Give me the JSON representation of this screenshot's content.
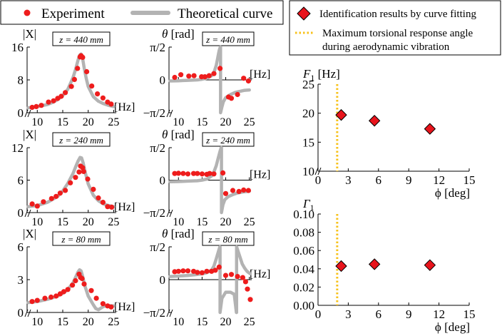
{
  "left_legend": {
    "experiment_label": "Experiment",
    "theory_label": "Theoretical curve"
  },
  "right_legend": {
    "identification_label": "Identification results by curve fitting",
    "max_angle_label_line1": "Maximum torsional response angle",
    "max_angle_label_line2": "during aerodynamic vibration"
  },
  "colors": {
    "experiment": "#ee1c1c",
    "theory": "#b3b3b3",
    "marker_fill": "#e8141c",
    "marker_stroke": "#000000",
    "max_angle_line": "#f7c21b"
  },
  "chart_data": [
    {
      "id": "amp-440",
      "type": "line+scatter",
      "ylabel": "|X|",
      "xlabel": "[Hz]",
      "annotation": "z = 440 mm",
      "xlim": [
        8,
        25.5
      ],
      "xticks": [
        10,
        15,
        20,
        25
      ],
      "ylim": [
        0,
        16
      ],
      "yticks": [
        {
          "v": 0,
          "label": "0"
        },
        {
          "v": 8,
          "label": "8"
        },
        {
          "v": 16,
          "label": "16"
        }
      ],
      "experiment": {
        "x": [
          9,
          9.8,
          10.8,
          12.2,
          13.2,
          14,
          14.7,
          15.5,
          16.7,
          17.3,
          17.9,
          18.4,
          18.6,
          18.9,
          19.7,
          20.7,
          21.8,
          22.9,
          23.8,
          24.5
        ],
        "y": [
          1.3,
          1.5,
          1.8,
          2.6,
          2.9,
          3.5,
          4,
          4.9,
          6.4,
          8.1,
          10.8,
          13.6,
          13.9,
          13.5,
          10,
          6.5,
          4.6,
          3.6,
          2.6,
          2.1
        ]
      },
      "theory": {
        "x": [
          8.2,
          10,
          12,
          13,
          14,
          15,
          16,
          17,
          17.5,
          18,
          18.3,
          18.6,
          18.9,
          19.2,
          19.6,
          20,
          21,
          22,
          23,
          24,
          25
        ],
        "y": [
          1.2,
          1.5,
          2,
          2.5,
          3.2,
          4.2,
          5.7,
          8.5,
          10.5,
          12.8,
          14,
          14.3,
          13.2,
          11,
          8.4,
          6.4,
          3.9,
          2.8,
          2.2,
          1.8,
          1.5
        ]
      }
    },
    {
      "id": "phase-440",
      "type": "line+scatter",
      "ylabel": "θ [rad]",
      "xlabel": "[Hz]",
      "annotation": "z = 440 mm",
      "xlim": [
        8,
        25.5
      ],
      "xticks": [
        10,
        15,
        20,
        25
      ],
      "ylim": [
        -1.5708,
        1.5708
      ],
      "yticks": [
        {
          "v": -1.5708,
          "label": "−π/2"
        },
        {
          "v": 0,
          "label": "0"
        },
        {
          "v": 1.5708,
          "label": "π/2"
        }
      ],
      "experiment": {
        "x": [
          9.2,
          10.5,
          12.2,
          13.3,
          14.9,
          15.6,
          16.5,
          17.5,
          18.8,
          20.6,
          21.2,
          22.5,
          23.8,
          24.8
        ],
        "y": [
          0.12,
          0.25,
          0.18,
          0.2,
          0.15,
          0.15,
          0.2,
          0.3,
          0.55,
          -0.82,
          -0.88,
          -0.7,
          0.08,
          -0.05
        ]
      },
      "theory": [
        {
          "x": [
            8.2,
            10,
            12,
            14,
            15,
            16,
            17,
            17.5,
            18,
            18.3,
            18.6,
            18.85
          ],
          "y": [
            -0.05,
            -0.04,
            -0.02,
            0,
            0.03,
            0.08,
            0.2,
            0.35,
            0.7,
            1.05,
            1.4,
            1.5708
          ]
        },
        {
          "x": [
            18.9,
            18.9,
            19.2,
            19.5,
            20,
            21,
            22,
            23,
            24,
            25
          ],
          "y": [
            1.5708,
            -1.5708,
            -1.3,
            -1.05,
            -0.85,
            -0.7,
            -0.6,
            -0.55,
            -0.5,
            -0.48
          ]
        }
      ]
    },
    {
      "id": "amp-240",
      "type": "line+scatter",
      "ylabel": "|X|",
      "xlabel": "[Hz]",
      "annotation": "z = 240 mm",
      "xlim": [
        8,
        25.5
      ],
      "xticks": [
        10,
        15,
        20,
        25
      ],
      "ylim": [
        0,
        12
      ],
      "yticks": [
        {
          "v": 0,
          "label": "0"
        },
        {
          "v": 6,
          "label": "6"
        },
        {
          "v": 12,
          "label": "12"
        }
      ],
      "experiment": {
        "x": [
          9,
          10,
          11.2,
          12.8,
          13.7,
          14.5,
          15.5,
          16.5,
          17.5,
          18.2,
          18.5,
          18.9,
          19.1,
          19.9,
          21,
          22,
          22.9,
          23.8,
          24.6
        ],
        "y": [
          1.6,
          1.2,
          2,
          2.6,
          3,
          3.6,
          4.1,
          5.5,
          6.5,
          7.5,
          8.6,
          8.3,
          7.6,
          6.2,
          4.3,
          2.7,
          1.9,
          1.1,
          1
        ]
      },
      "theory": {
        "x": [
          8.2,
          10,
          12,
          14,
          15,
          16,
          17,
          17.5,
          18,
          18.4,
          18.7,
          19,
          19.4,
          20,
          21,
          22,
          23,
          24,
          25
        ],
        "y": [
          1.1,
          1.3,
          1.9,
          3,
          4,
          5.4,
          7.2,
          8.4,
          9.5,
          10.2,
          10.1,
          9.2,
          7.5,
          5.3,
          3.2,
          2.2,
          1.6,
          1.3,
          1.1
        ]
      }
    },
    {
      "id": "phase-240",
      "type": "line+scatter",
      "ylabel": "θ [rad]",
      "xlabel": "[Hz]",
      "annotation": "z = 240 mm",
      "xlim": [
        8,
        25.5
      ],
      "xticks": [
        10,
        15,
        20,
        25
      ],
      "ylim": [
        -1.5708,
        1.5708
      ],
      "yticks": [
        {
          "v": -1.5708,
          "label": "−π/2"
        },
        {
          "v": 0,
          "label": "0"
        },
        {
          "v": 1.5708,
          "label": "π/2"
        }
      ],
      "experiment": {
        "x": [
          9.2,
          10,
          11,
          12,
          13.2,
          14,
          15,
          16,
          16.6,
          17.5,
          19.4,
          20,
          21.5,
          22.8,
          23.8,
          24.8
        ],
        "y": [
          0.32,
          0.33,
          0.32,
          0.3,
          0.32,
          0.32,
          0.3,
          0.28,
          0.32,
          0.3,
          0.35,
          -0.65,
          -0.5,
          -0.55,
          -0.48,
          -0.5
        ]
      },
      "theory": [
        {
          "x": [
            8.2,
            10,
            12,
            14,
            15,
            16,
            17,
            17.5,
            18,
            18.4,
            18.8,
            19.05
          ],
          "y": [
            -0.08,
            -0.07,
            -0.05,
            -0.03,
            0,
            0.05,
            0.2,
            0.4,
            0.7,
            1.05,
            1.4,
            1.5708
          ]
        },
        {
          "x": [
            19.1,
            19.1,
            19.4,
            19.8,
            20.5,
            21.5,
            22.5,
            23.5,
            24.5,
            25
          ],
          "y": [
            1.5708,
            -1.5708,
            -1.2,
            -0.95,
            -0.8,
            -0.7,
            -0.62,
            -0.58,
            -0.55,
            -0.54
          ]
        }
      ]
    },
    {
      "id": "amp-80",
      "type": "line+scatter",
      "ylabel": "|X|",
      "xlabel": "[Hz]",
      "annotation": "z = 80 mm",
      "xlim": [
        8,
        25.5
      ],
      "xticks": [
        10,
        15,
        20,
        25
      ],
      "ylim": [
        0,
        6
      ],
      "yticks": [
        {
          "v": 0,
          "label": "0"
        },
        {
          "v": 3,
          "label": "3"
        },
        {
          "v": 6,
          "label": "6"
        }
      ],
      "experiment": {
        "x": [
          9,
          10,
          11.5,
          12.7,
          13.7,
          14.5,
          15.2,
          16,
          16.9,
          17.5,
          18.2,
          18.5,
          18.8,
          19.2,
          20.6,
          21.6,
          22.9,
          23.8,
          24.5
        ],
        "y": [
          1,
          1.1,
          1.3,
          1.4,
          1.5,
          1.7,
          1.9,
          2.1,
          2.5,
          2.9,
          3.5,
          3.2,
          3.1,
          2.6,
          2,
          1.3,
          0.8,
          0.6,
          0.5
        ]
      },
      "theory": {
        "x": [
          8.2,
          10,
          12,
          14,
          15,
          16,
          17,
          17.5,
          18,
          18.3,
          18.6,
          18.9,
          19.3,
          20,
          21,
          21.5,
          22,
          22.5,
          23,
          23.5,
          24,
          25
        ],
        "y": [
          0.9,
          1,
          1.2,
          1.5,
          1.75,
          2.1,
          2.7,
          3.2,
          3.7,
          3.9,
          3.8,
          3.3,
          2.5,
          1.5,
          0.7,
          0.35,
          0.25,
          0.4,
          0.55,
          0.6,
          0.62,
          0.6
        ]
      }
    },
    {
      "id": "phase-80",
      "type": "line+scatter",
      "ylabel": "θ [rad]",
      "xlabel": "[Hz]",
      "annotation": "z = 80 mm",
      "xlim": [
        8,
        25.5
      ],
      "xticks": [
        10,
        15,
        20,
        25
      ],
      "ylim": [
        -1.5708,
        1.5708
      ],
      "yticks": [
        {
          "v": -1.5708,
          "label": "−π/2"
        },
        {
          "v": 0,
          "label": "0"
        },
        {
          "v": 1.5708,
          "label": "π/2"
        }
      ],
      "experiment": {
        "x": [
          9.2,
          10,
          11,
          12,
          13.2,
          14,
          15,
          16,
          17,
          17.8,
          18.6,
          20,
          21.2,
          22.5,
          23.6,
          24.2,
          24.6,
          25.2
        ],
        "y": [
          0.38,
          0.4,
          0.42,
          0.42,
          0.4,
          0.35,
          0.33,
          0.4,
          0.4,
          0.45,
          0.6,
          0.2,
          0.25,
          0.15,
          0.1,
          -0.1,
          -0.45,
          -0.95
        ]
      },
      "theory": [
        {
          "x": [
            8.2,
            10,
            12,
            14,
            15,
            16,
            17,
            17.5,
            18,
            18.4,
            18.75
          ],
          "y": [
            0.15,
            0.17,
            0.2,
            0.25,
            0.28,
            0.33,
            0.45,
            0.65,
            1,
            1.3,
            1.5708
          ]
        },
        {
          "x": [
            18.8,
            18.8,
            19.2,
            20,
            21,
            21.8,
            22.25
          ],
          "y": [
            1.5708,
            -1.5708,
            -0.9,
            -0.6,
            -0.6,
            -0.7,
            -1.5708
          ]
        },
        {
          "x": [
            22.3,
            22.3,
            23,
            23.5,
            24,
            24.5,
            25.2
          ],
          "y": [
            -1.5708,
            1.5708,
            1.1,
            0.75,
            0.55,
            0.4,
            0.28
          ]
        }
      ]
    },
    {
      "id": "F1",
      "type": "scatter",
      "ylabel": "F1 [Hz]",
      "xlabel": "ϕ [deg]",
      "xlim": [
        0,
        15
      ],
      "xticks": [
        0,
        3,
        6,
        9,
        12,
        15
      ],
      "ylim": [
        10,
        25
      ],
      "yticks": [
        {
          "v": 10,
          "label": "10"
        },
        {
          "v": 15,
          "label": "15"
        },
        {
          "v": 20,
          "label": "20"
        },
        {
          "v": 25,
          "label": "25"
        }
      ],
      "points": {
        "x": [
          2.3,
          5.6,
          11.1
        ],
        "y": [
          19.7,
          18.7,
          17.3
        ]
      },
      "vline_x": 1.9
    },
    {
      "id": "Gamma1",
      "type": "scatter",
      "ylabel": "Γ1",
      "xlabel": "ϕ [deg]",
      "xlim": [
        0,
        15
      ],
      "xticks": [
        0,
        3,
        6,
        9,
        12,
        15
      ],
      "ylim": [
        0,
        0.1
      ],
      "yticks": [
        {
          "v": 0,
          "label": "0.00"
        },
        {
          "v": 0.02,
          "label": "0.02"
        },
        {
          "v": 0.04,
          "label": "0.04"
        },
        {
          "v": 0.06,
          "label": "0.06"
        },
        {
          "v": 0.08,
          "label": "0.08"
        },
        {
          "v": 0.1,
          "label": "0.10"
        }
      ],
      "points": {
        "x": [
          2.3,
          5.6,
          11.1
        ],
        "y": [
          0.043,
          0.045,
          0.044
        ]
      },
      "vline_x": 1.9
    }
  ]
}
